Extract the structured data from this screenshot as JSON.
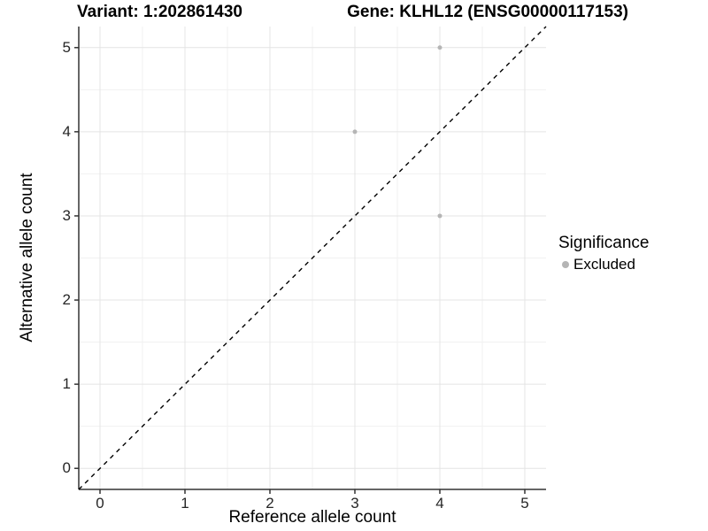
{
  "chart_data": {
    "type": "scatter",
    "title_left": "Variant: 1:202861430",
    "title_right": "Gene: KLHL12 (ENSG00000117153)",
    "xlabel": "Reference allele count",
    "ylabel": "Alternative allele count",
    "xlim": [
      -0.25,
      5.25
    ],
    "ylim": [
      -0.25,
      5.25
    ],
    "xticks": [
      0,
      1,
      2,
      3,
      4,
      5
    ],
    "yticks": [
      0,
      1,
      2,
      3,
      4,
      5
    ],
    "minor_ticks_x": [
      0.5,
      1.5,
      2.5,
      3.5,
      4.5
    ],
    "minor_ticks_y": [
      0.5,
      1.5,
      2.5,
      3.5,
      4.5
    ],
    "grid": "major+minor",
    "series": [
      {
        "name": "Excluded",
        "marker": "circle",
        "color": "#b5b5b5",
        "points": [
          [
            3,
            4
          ],
          [
            4,
            5
          ],
          [
            4,
            3
          ]
        ]
      }
    ],
    "identity_line": {
      "style": "dashed",
      "color": "#000000",
      "from": [
        -0.25,
        -0.25
      ],
      "to": [
        5.25,
        5.25
      ]
    },
    "legend": {
      "title": "Significance",
      "position": "right",
      "entries": [
        {
          "label": "Excluded",
          "color": "#b5b5b5"
        }
      ]
    }
  },
  "colors": {
    "background": "#ffffff",
    "panel_background": "#ffffff",
    "grid_major": "#e4e4e4",
    "grid_minor": "#f1f1f1",
    "axis_line": "#333333",
    "tick_mark": "#333333",
    "tick_label": "#262626",
    "point": "#b5b5b5",
    "identity_line": "#000000"
  }
}
